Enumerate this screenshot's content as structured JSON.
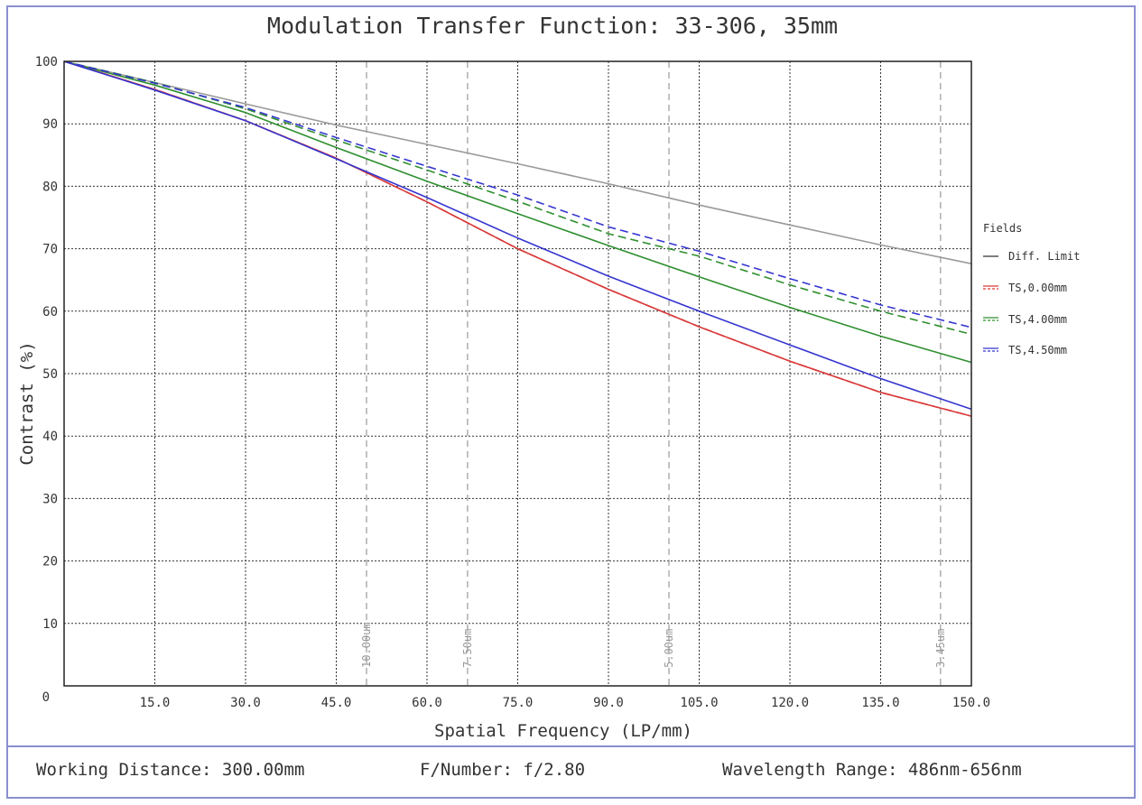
{
  "footer": {
    "working_distance": "Working Distance: 300.00mm",
    "f_number": "F/Number: f/2.80",
    "wavelength_range": "Wavelength Range: 486nm-656nm"
  },
  "colors": {
    "diff_limit": "#9a9a9a",
    "legend_diff": "#333333",
    "ts_0": "#d93a3a",
    "ts_4": "#2e8f2e",
    "ts_45": "#3535d0",
    "frame": "#8a8fd0"
  },
  "chart_data": {
    "type": "line",
    "title": "Modulation Transfer Function: 33-306, 35mm",
    "xlabel": "Spatial Frequency (LP/mm)",
    "ylabel": "Contrast (%)",
    "xlim": [
      0,
      150
    ],
    "ylim": [
      0,
      100
    ],
    "x_ticks": [
      15,
      30,
      45,
      60,
      75,
      90,
      105,
      120,
      135,
      150
    ],
    "x_tick_labels": [
      "15.0",
      "30.0",
      "45.0",
      "60.0",
      "75.0",
      "90.0",
      "105.0",
      "120.0",
      "135.0",
      "150.0"
    ],
    "y_ticks": [
      0,
      10,
      20,
      30,
      40,
      50,
      60,
      70,
      80,
      90,
      100
    ],
    "y_tick_labels": [
      "0",
      "10",
      "20",
      "30",
      "40",
      "50",
      "60",
      "70",
      "80",
      "90",
      "100"
    ],
    "grid": true,
    "legend_title": "Fields",
    "legend_position": "right",
    "pixel_markers": [
      {
        "x": 50,
        "label": "10.00um"
      },
      {
        "x": 66.7,
        "label": "7.50um"
      },
      {
        "x": 100,
        "label": "5.00um"
      },
      {
        "x": 144.9,
        "label": "3.45um"
      }
    ],
    "x": [
      0,
      15,
      30,
      45,
      60,
      75,
      90,
      105,
      120,
      135,
      150
    ],
    "series": [
      {
        "name": "Diff. Limit",
        "style": "solid",
        "color": "#9a9a9a",
        "values": [
          100,
          96.6,
          93.2,
          89.8,
          86.7,
          83.6,
          80.4,
          77.0,
          73.8,
          70.6,
          67.6
        ]
      },
      {
        "name": "TS,0.00mm",
        "style": "solid",
        "color": "#d93a3a",
        "values": [
          100,
          95.5,
          90.5,
          84.5,
          77.5,
          70.0,
          63.5,
          57.5,
          52.0,
          47.0,
          43.2
        ]
      },
      {
        "name": "TS,0.00mm",
        "style": "dashed",
        "color": "#d93a3a",
        "values": [
          100,
          95.5,
          90.5,
          84.5,
          77.5,
          70.0,
          63.5,
          57.5,
          52.0,
          47.0,
          43.2
        ]
      },
      {
        "name": "TS,4.00mm",
        "style": "solid",
        "color": "#2e8f2e",
        "values": [
          100,
          96.2,
          91.8,
          86.2,
          80.8,
          75.6,
          70.5,
          65.5,
          60.6,
          56.0,
          51.8
        ]
      },
      {
        "name": "TS,4.00mm",
        "style": "dashed",
        "color": "#2e8f2e",
        "values": [
          100,
          96.6,
          92.4,
          87.4,
          82.6,
          77.6,
          72.4,
          68.8,
          64.2,
          60.0,
          56.3
        ]
      },
      {
        "name": "TS,4.50mm",
        "style": "solid",
        "color": "#3535d0",
        "values": [
          100,
          95.4,
          90.5,
          84.4,
          78.2,
          71.7,
          65.6,
          60.0,
          54.6,
          49.2,
          44.3
        ]
      },
      {
        "name": "TS,4.50mm",
        "style": "dashed",
        "color": "#3535d0",
        "values": [
          100,
          96.5,
          92.6,
          87.8,
          83.2,
          78.6,
          73.5,
          69.6,
          65.2,
          61.0,
          57.4
        ]
      }
    ],
    "legend": [
      {
        "label": "Diff. Limit",
        "color": "#333333",
        "style": "solid"
      },
      {
        "label": "TS,0.00mm",
        "color": "#d93a3a",
        "style": "double"
      },
      {
        "label": "TS,4.00mm",
        "color": "#2e8f2e",
        "style": "double"
      },
      {
        "label": "TS,4.50mm",
        "color": "#3535d0",
        "style": "double"
      }
    ]
  }
}
